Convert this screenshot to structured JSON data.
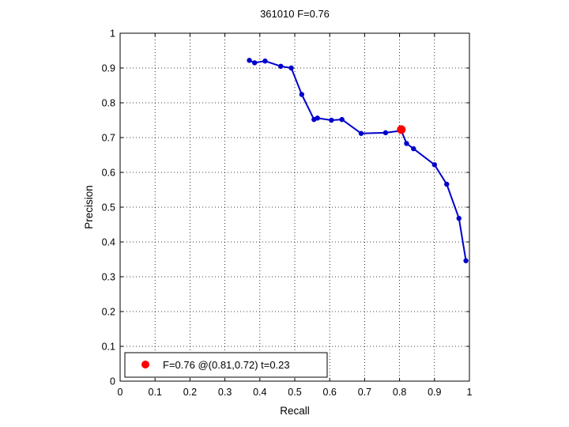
{
  "chart_data": {
    "type": "line",
    "title": "361010 F=0.76",
    "xlabel": "Recall",
    "ylabel": "Precision",
    "xlim": [
      0,
      1
    ],
    "ylim": [
      0,
      1
    ],
    "xticks": [
      "0",
      "0.1",
      "0.2",
      "0.3",
      "0.4",
      "0.5",
      "0.6",
      "0.7",
      "0.8",
      "0.9",
      "1"
    ],
    "yticks": [
      "0",
      "0.1",
      "0.2",
      "0.3",
      "0.4",
      "0.5",
      "0.6",
      "0.7",
      "0.8",
      "0.9",
      "1"
    ],
    "grid": true,
    "series": [
      {
        "color": "#0000cc",
        "x": [
          0.37,
          0.385,
          0.415,
          0.46,
          0.49,
          0.52,
          0.555,
          0.565,
          0.605,
          0.635,
          0.69,
          0.76,
          0.805,
          0.82,
          0.84,
          0.9,
          0.935,
          0.97,
          0.99
        ],
        "y": [
          0.922,
          0.915,
          0.92,
          0.905,
          0.9,
          0.824,
          0.752,
          0.756,
          0.75,
          0.752,
          0.712,
          0.714,
          0.72,
          0.683,
          0.668,
          0.622,
          0.566,
          0.468,
          0.346
        ]
      }
    ],
    "highlight": {
      "x": 0.805,
      "y": 0.723,
      "color": "#ff0000"
    },
    "legend": {
      "position": "bottom-left",
      "label": "F=0.76 @(0.81,0.72) t=0.23"
    }
  }
}
